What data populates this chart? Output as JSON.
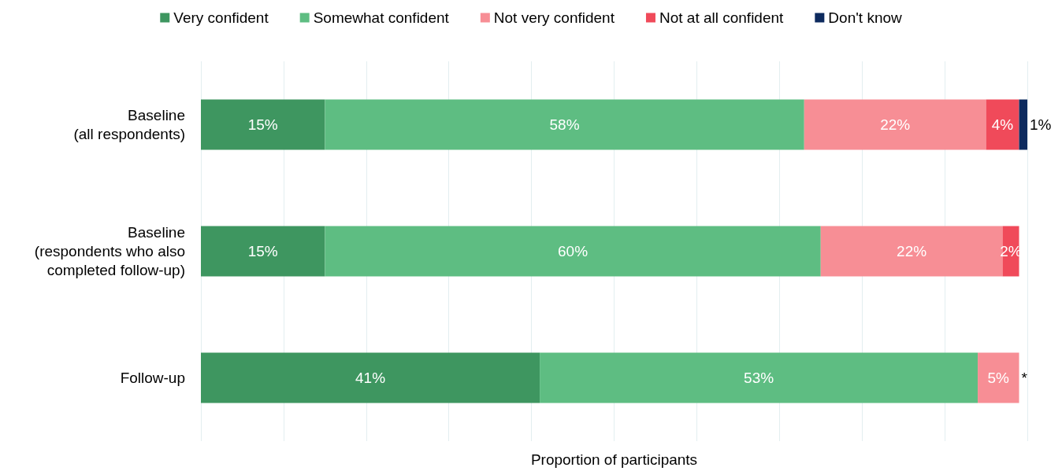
{
  "chart_data": {
    "type": "bar",
    "orientation": "horizontal",
    "stacked": true,
    "xlabel": "Proportion of participants",
    "categories": [
      "Baseline\n(all respondents)",
      "Baseline\n(respondents who also\ncompleted follow-up)",
      "Follow-up"
    ],
    "series": [
      {
        "name": "Very confident",
        "color": "#3e9660",
        "values": [
          15,
          15,
          41
        ],
        "value_labels": [
          "15%",
          "15%",
          "41%"
        ]
      },
      {
        "name": "Somewhat confident",
        "color": "#5ebd82",
        "values": [
          58,
          60,
          53
        ],
        "value_labels": [
          "58%",
          "60%",
          "53%"
        ]
      },
      {
        "name": "Not very confident",
        "color": "#f78e95",
        "values": [
          22,
          22,
          5
        ],
        "value_labels": [
          "22%",
          "22%",
          "5%"
        ]
      },
      {
        "name": "Not at all confident",
        "color": "#f04a5a",
        "values": [
          4,
          2,
          0
        ],
        "value_labels": [
          "4%",
          "2%",
          "*"
        ]
      },
      {
        "name": "Don't know",
        "color": "#0d2a5e",
        "values": [
          1,
          null,
          null
        ],
        "value_labels": [
          "1%",
          null,
          null
        ]
      }
    ],
    "xlim": [
      0,
      100
    ],
    "xticks": [
      {
        "value": 0,
        "label": null
      },
      {
        "value": 10,
        "label": null
      },
      {
        "value": 20,
        "label": null
      },
      {
        "value": 30,
        "label": null
      },
      {
        "value": 40,
        "label": null
      },
      {
        "value": 50,
        "label": null
      },
      {
        "value": 60,
        "label": null
      },
      {
        "value": 70,
        "label": null
      },
      {
        "value": 80,
        "label": null
      },
      {
        "value": 90,
        "label": null
      },
      {
        "value": 100,
        "label": null
      }
    ],
    "grid": "x",
    "legend": "top",
    "tick_labels": "y"
  }
}
